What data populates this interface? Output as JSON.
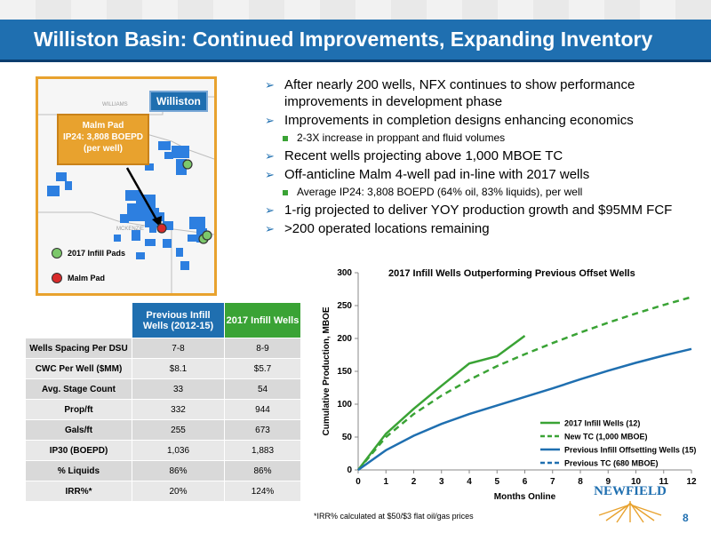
{
  "header": {
    "title": "Williston Basin: Continued Improvements, Expanding Inventory"
  },
  "map": {
    "basin_label": "Williston",
    "callout": {
      "line1": "Malm Pad",
      "line2": "IP24: 3,808 BOEPD",
      "line3": "(per well)"
    },
    "legend": [
      {
        "label": "2017 Infill Pads",
        "color": "#7cc86b"
      },
      {
        "label": "Malm Pad",
        "color": "#d92b2b"
      }
    ],
    "county_labels": [
      "WILLIAMS",
      "MCKENZIE"
    ]
  },
  "bullets": [
    {
      "level": 1,
      "text": "After nearly 200 wells, NFX continues to show performance improvements in development phase"
    },
    {
      "level": 1,
      "text": "Improvements in completion designs enhancing economics"
    },
    {
      "level": 2,
      "text": "2-3X increase in proppant and fluid volumes"
    },
    {
      "level": 1,
      "text": "Recent wells projecting above 1,000 MBOE TC"
    },
    {
      "level": 1,
      "text": "Off-anticline Malm 4-well pad in-line with 2017 wells"
    },
    {
      "level": 2,
      "text": "Average IP24: 3,808 BOEPD (64% oil, 83% liquids), per well"
    },
    {
      "level": 1,
      "text": "1-rig projected to deliver YOY production growth and  $95MM FCF"
    },
    {
      "level": 1,
      "text": ">200 operated locations remaining"
    }
  ],
  "table": {
    "headers": [
      "Previous Infill Wells (2012-15)",
      "2017 Infill Wells"
    ],
    "rows": [
      [
        "Wells Spacing Per DSU",
        "7-8",
        "8-9"
      ],
      [
        "CWC Per Well ($MM)",
        "$8.1",
        "$5.7"
      ],
      [
        "Avg. Stage Count",
        "33",
        "54"
      ],
      [
        "Prop/ft",
        "332",
        "944"
      ],
      [
        "Gals/ft",
        "255",
        "673"
      ],
      [
        "IP30 (BOEPD)",
        "1,036",
        "1,883"
      ],
      [
        "% Liquids",
        "86%",
        "86%"
      ],
      [
        "IRR%*",
        "20%",
        "124%"
      ]
    ]
  },
  "chart_data": {
    "type": "line",
    "title": "2017 Infill Wells Outperforming Previous Offset Wells",
    "xlabel": "Months Online",
    "ylabel": "Cumulative Production, MBOE",
    "xlim": [
      0,
      12
    ],
    "ylim": [
      0,
      300
    ],
    "xticks": [
      0,
      1,
      2,
      3,
      4,
      5,
      6,
      7,
      8,
      9,
      10,
      11,
      12
    ],
    "yticks": [
      0,
      50,
      100,
      150,
      200,
      250,
      300
    ],
    "legend_position": "bottom-right",
    "series": [
      {
        "name": "2017 Infill Wells (12)",
        "color": "#3aa335",
        "dash": false,
        "x": [
          0,
          1,
          2,
          3,
          4,
          5,
          6
        ],
        "y": [
          0,
          55,
          93,
          128,
          162,
          173,
          204
        ]
      },
      {
        "name": "New TC (1,000 MBOE)",
        "color": "#3aa335",
        "dash": true,
        "x": [
          0,
          1,
          2,
          3,
          4,
          5,
          6,
          7,
          8,
          9,
          10,
          11,
          12
        ],
        "y": [
          0,
          50,
          85,
          113,
          137,
          158,
          176,
          193,
          209,
          224,
          238,
          251,
          263
        ]
      },
      {
        "name": "Previous Infill Offsetting Wells (15)",
        "color": "#1f6fb0",
        "dash": false,
        "x": [
          0,
          1,
          2,
          3,
          4,
          5,
          6,
          7,
          8,
          9,
          10,
          11,
          12
        ],
        "y": [
          0,
          30,
          52,
          70,
          85,
          98,
          111,
          124,
          138,
          151,
          163,
          174,
          184
        ]
      },
      {
        "name": "Previous TC (680 MBOE)",
        "color": "#1f6fb0",
        "dash": true,
        "x": [
          0,
          1,
          2,
          3,
          4,
          5,
          6,
          7,
          8,
          9,
          10,
          11,
          12
        ],
        "y": [
          0,
          30,
          52,
          70,
          85,
          98,
          111,
          124,
          138,
          151,
          163,
          174,
          184
        ]
      }
    ]
  },
  "footer": {
    "footnote": "*IRR% calculated at $50/$3 flat oil/gas prices",
    "logo_text": "NEWFIELD",
    "page_number": "8"
  },
  "colors": {
    "brand_blue": "#1f6fb0",
    "brand_green": "#3aa335",
    "accent_orange": "#e8a22e"
  }
}
